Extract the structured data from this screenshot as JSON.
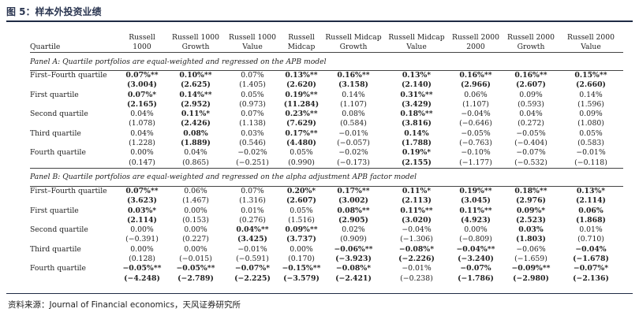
{
  "title": "图 5：样本外投资业绩",
  "source": "资料来源：Journal of Financial economics，天风证券研究所",
  "table": {
    "headers": [
      {
        "l1": "",
        "l2": "Quartile"
      },
      {
        "l1": "Russell",
        "l2": "1000"
      },
      {
        "l1": "Russell 1000",
        "l2": "Growth"
      },
      {
        "l1": "Russell 1000",
        "l2": "Value"
      },
      {
        "l1": "Russell",
        "l2": "Midcap"
      },
      {
        "l1": "Russell Midcap",
        "l2": "Growth"
      },
      {
        "l1": "Russell Midcap",
        "l2": "Value"
      },
      {
        "l1": "Russell 2000",
        "l2": "2000"
      },
      {
        "l1": "Russell 2000",
        "l2": "Growth"
      },
      {
        "l1": "Russell 2000",
        "l2": "Value"
      }
    ],
    "panels": [
      {
        "title": "Panel A: Quartile portfolios are equal-weighted and regressed on the APB model",
        "rows": [
          {
            "label": "First–Fourth quartile",
            "values": [
              [
                "0.07%**",
                1
              ],
              [
                "0.10%**",
                1
              ],
              [
                "0.07%",
                0
              ],
              [
                "0.13%**",
                1
              ],
              [
                "0.16%**",
                1
              ],
              [
                "0.13%*",
                1
              ],
              [
                "0.16%**",
                1
              ],
              [
                "0.16%**",
                1
              ],
              [
                "0.15%**",
                1
              ]
            ],
            "stats": [
              [
                "(3.004)",
                1
              ],
              [
                "(2.625)",
                1
              ],
              [
                "(1.405)",
                0
              ],
              [
                "(2.620)",
                1
              ],
              [
                "(3.158)",
                1
              ],
              [
                "(2.140)",
                1
              ],
              [
                "(2.966)",
                1
              ],
              [
                "(2.607)",
                1
              ],
              [
                "(2.660)",
                1
              ]
            ]
          },
          {
            "label": "First quartile",
            "values": [
              [
                "0.07%*",
                1
              ],
              [
                "0.14%**",
                1
              ],
              [
                "0.05%",
                0
              ],
              [
                "0.19%**",
                1
              ],
              [
                "0.14%",
                0
              ],
              [
                "0.31%**",
                1
              ],
              [
                "0.06%",
                0
              ],
              [
                "0.09%",
                0
              ],
              [
                "0.14%",
                0
              ]
            ],
            "stats": [
              [
                "(2.165)",
                1
              ],
              [
                "(2.952)",
                1
              ],
              [
                "(0.973)",
                0
              ],
              [
                "(11.284)",
                1
              ],
              [
                "(1.107)",
                0
              ],
              [
                "(3.429)",
                1
              ],
              [
                "(1.107)",
                0
              ],
              [
                "(0.593)",
                0
              ],
              [
                "(1.596)",
                0
              ]
            ]
          },
          {
            "label": "Second quartile",
            "values": [
              [
                "0.04%",
                0
              ],
              [
                "0.11%*",
                1
              ],
              [
                "0.07%",
                0
              ],
              [
                "0.23%**",
                1
              ],
              [
                "0.08%",
                0
              ],
              [
                "0.18%**",
                1
              ],
              [
                "−0.04%",
                0
              ],
              [
                "0.04%",
                0
              ],
              [
                "0.09%",
                0
              ]
            ],
            "stats": [
              [
                "(1.078)",
                0
              ],
              [
                "(2.426)",
                1
              ],
              [
                "(1.138)",
                0
              ],
              [
                "(7.629)",
                1
              ],
              [
                "(0.584)",
                0
              ],
              [
                "(3.816)",
                1
              ],
              [
                "(−0.646)",
                0
              ],
              [
                "(0.272)",
                0
              ],
              [
                "(1.080)",
                0
              ]
            ]
          },
          {
            "label": "Third quartile",
            "values": [
              [
                "0.04%",
                0
              ],
              [
                "0.08%",
                1
              ],
              [
                "0.03%",
                0
              ],
              [
                "0.17%**",
                1
              ],
              [
                "−0.01%",
                0
              ],
              [
                "0.14%",
                1
              ],
              [
                "−0.05%",
                0
              ],
              [
                "−0.05%",
                0
              ],
              [
                "0.05%",
                0
              ]
            ],
            "stats": [
              [
                "(1.228)",
                0
              ],
              [
                "(1.889)",
                1
              ],
              [
                "(0.546)",
                0
              ],
              [
                "(4.480)",
                1
              ],
              [
                "(−0.057)",
                0
              ],
              [
                "(1.788)",
                1
              ],
              [
                "(−0.763)",
                0
              ],
              [
                "(−0.404)",
                0
              ],
              [
                "(0.583)",
                0
              ]
            ]
          },
          {
            "label": "Fourth quartile",
            "values": [
              [
                "0.00%",
                0
              ],
              [
                "0.04%",
                0
              ],
              [
                "−0.02%",
                0
              ],
              [
                "0.05%",
                0
              ],
              [
                "−0.02%",
                0
              ],
              [
                "0.19%*",
                1
              ],
              [
                "−0.10%",
                0
              ],
              [
                "−0.07%",
                0
              ],
              [
                "−0.01%",
                0
              ]
            ],
            "stats": [
              [
                "(0.147)",
                0
              ],
              [
                "(0.865)",
                0
              ],
              [
                "(−0.251)",
                0
              ],
              [
                "(0.990)",
                0
              ],
              [
                "(−0.173)",
                0
              ],
              [
                "(2.155)",
                1
              ],
              [
                "(−1.177)",
                0
              ],
              [
                "(−0.532)",
                0
              ],
              [
                "(−0.118)",
                0
              ]
            ]
          }
        ]
      },
      {
        "title": "Panel B: Quartile portfolios are equal-weighted and regressed on the alpha adjustment APB factor model",
        "rows": [
          {
            "label": "First–Fourth quartile",
            "values": [
              [
                "0.07%**",
                1
              ],
              [
                "0.06%",
                0
              ],
              [
                "0.07%",
                0
              ],
              [
                "0.20%*",
                1
              ],
              [
                "0.17%**",
                1
              ],
              [
                "0.11%*",
                1
              ],
              [
                "0.19%**",
                1
              ],
              [
                "0.18%**",
                1
              ],
              [
                "0.13%*",
                1
              ]
            ],
            "stats": [
              [
                "(3.623)",
                1
              ],
              [
                "(1.467)",
                0
              ],
              [
                "(1.316)",
                0
              ],
              [
                "(2.607)",
                1
              ],
              [
                "(3.002)",
                1
              ],
              [
                "(2.113)",
                1
              ],
              [
                "(3.045)",
                1
              ],
              [
                "(2.976)",
                1
              ],
              [
                "(2.114)",
                1
              ]
            ]
          },
          {
            "label": "First quartile",
            "values": [
              [
                "0.03%*",
                1
              ],
              [
                "0.00%",
                0
              ],
              [
                "0.01%",
                0
              ],
              [
                "0.05%",
                0
              ],
              [
                "0.08%**",
                1
              ],
              [
                "0.11%**",
                1
              ],
              [
                "0.11%**",
                1
              ],
              [
                "0.09%*",
                1
              ],
              [
                "0.06%",
                1
              ]
            ],
            "stats": [
              [
                "(2.114)",
                1
              ],
              [
                "(0.153)",
                0
              ],
              [
                "(0.276)",
                0
              ],
              [
                "(1.516)",
                0
              ],
              [
                "(2.905)",
                1
              ],
              [
                "(3.020)",
                1
              ],
              [
                "(4.923)",
                1
              ],
              [
                "(2.523)",
                1
              ],
              [
                "(1.868)",
                1
              ]
            ]
          },
          {
            "label": "Second quartile",
            "values": [
              [
                "0.00%",
                0
              ],
              [
                "0.00%",
                0
              ],
              [
                "0.04%**",
                1
              ],
              [
                "0.09%**",
                1
              ],
              [
                "0.02%",
                0
              ],
              [
                "−0.04%",
                0
              ],
              [
                "0.00%",
                0
              ],
              [
                "0.03%",
                1
              ],
              [
                "0.01%",
                0
              ]
            ],
            "stats": [
              [
                "(−0.391)",
                0
              ],
              [
                "(0.227)",
                0
              ],
              [
                "(3.425)",
                1
              ],
              [
                "(3.737)",
                1
              ],
              [
                "(0.909)",
                0
              ],
              [
                "(−1.306)",
                0
              ],
              [
                "(−0.809)",
                0
              ],
              [
                "(1.803)",
                1
              ],
              [
                "(0.710)",
                0
              ]
            ]
          },
          {
            "label": "Third quartile",
            "values": [
              [
                "0.00%",
                0
              ],
              [
                "0.00%",
                0
              ],
              [
                "−0.01%",
                0
              ],
              [
                "0.00%",
                0
              ],
              [
                "−0.06%**",
                1
              ],
              [
                "−0.08%*",
                1
              ],
              [
                "−0.04%**",
                1
              ],
              [
                "−0.06%",
                0
              ],
              [
                "−0.04%",
                1
              ]
            ],
            "stats": [
              [
                "(0.128)",
                0
              ],
              [
                "(−0.015)",
                0
              ],
              [
                "(−0.591)",
                0
              ],
              [
                "(0.170)",
                0
              ],
              [
                "(−3.923)",
                1
              ],
              [
                "(−2.226)",
                1
              ],
              [
                "(−3.240)",
                1
              ],
              [
                "(−1.659)",
                0
              ],
              [
                "(−1.678)",
                1
              ]
            ]
          },
          {
            "label": "Fourth quartile",
            "values": [
              [
                "−0.05%**",
                1
              ],
              [
                "−0.05%**",
                1
              ],
              [
                "−0.07%*",
                1
              ],
              [
                "−0.15%**",
                1
              ],
              [
                "−0.08%*",
                1
              ],
              [
                "−0.01%",
                0
              ],
              [
                "−0.07%",
                1
              ],
              [
                "−0.09%**",
                1
              ],
              [
                "−0.07%*",
                1
              ]
            ],
            "stats": [
              [
                "(−4.248)",
                1
              ],
              [
                "(−2.789)",
                1
              ],
              [
                "(−2.225)",
                1
              ],
              [
                "(−3.579)",
                1
              ],
              [
                "(−2.421)",
                1
              ],
              [
                "(−0.238)",
                0
              ],
              [
                "(−1.786)",
                1
              ],
              [
                "(−2.980)",
                1
              ],
              [
                "(−2.136)",
                1
              ]
            ]
          }
        ]
      }
    ]
  }
}
